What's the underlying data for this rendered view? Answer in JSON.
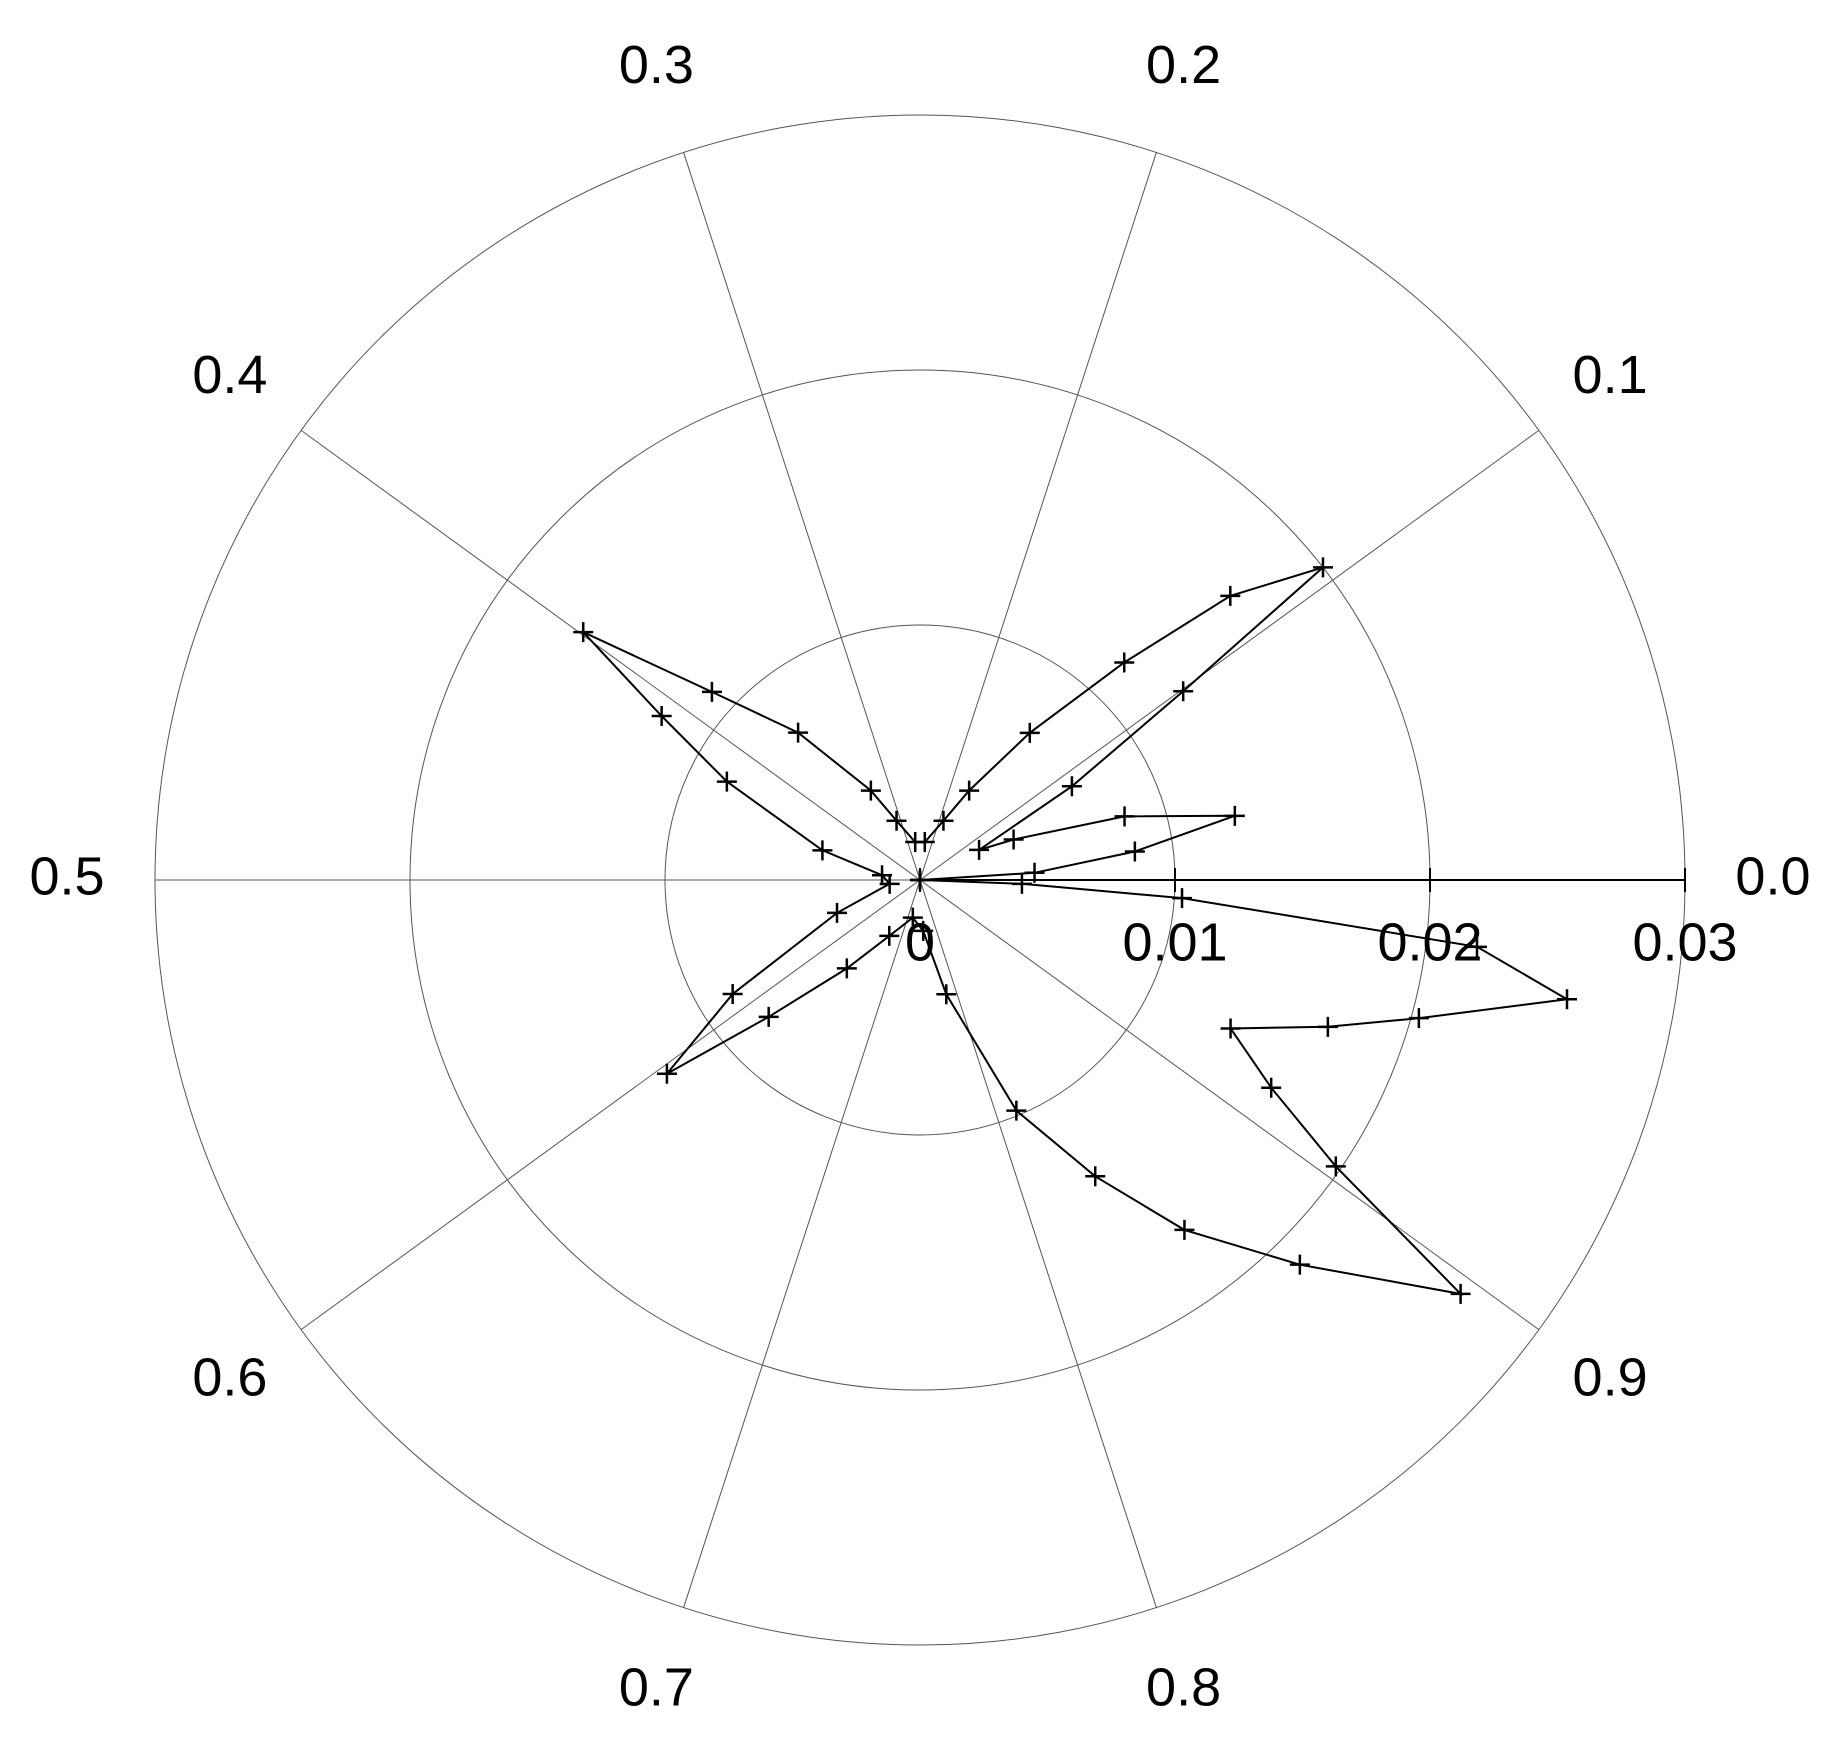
{
  "chart_data": {
    "type": "polar",
    "theta_unit": "fraction of turn",
    "rlim": [
      0,
      0.03
    ],
    "rticks": [
      0,
      0.01,
      0.02,
      0.03
    ],
    "thetaticks": [
      {
        "value": 0,
        "label": "0.0"
      },
      0.1,
      0.2,
      0.3,
      0.4,
      0.5,
      0.6,
      0.7,
      0.8,
      0.9
    ],
    "grid": true,
    "series": [
      {
        "color": "#000000",
        "marker": "+",
        "theta": [
          0.0,
          0.01,
          0.021,
          0.032,
          0.048,
          0.065,
          0.075,
          0.088,
          0.099,
          0.105,
          0.118,
          0.13,
          0.148,
          0.17,
          0.19,
          0.23,
          0.27,
          0.31,
          0.33,
          0.36,
          0.383,
          0.399,
          0.41,
          0.425,
          0.453,
          0.48,
          0.52,
          0.56,
          0.587,
          0.604,
          0.617,
          0.64,
          0.67,
          0.72,
          0.76,
          0.786,
          0.813,
          0.835,
          0.853,
          0.874,
          0.896,
          0.904,
          0.915,
          0.929,
          0.945,
          0.957,
          0.971,
          0.981,
          0.989,
          0.994,
          1.0
        ],
        "r": [
          0.0,
          0.0045,
          0.0085,
          0.0126,
          0.0084,
          0.004,
          0.0026,
          0.007,
          0.0127,
          0.02,
          0.0165,
          0.0117,
          0.0072,
          0.004,
          0.0025,
          0.0015,
          0.0015,
          0.0025,
          0.004,
          0.0075,
          0.011,
          0.0164,
          0.012,
          0.0085,
          0.004,
          0.0015,
          0.0012,
          0.0035,
          0.0086,
          0.0125,
          0.008,
          0.0045,
          0.0025,
          0.0015,
          0.002,
          0.0046,
          0.0098,
          0.0135,
          0.0172,
          0.0212,
          0.0267,
          0.0198,
          0.016,
          0.0135,
          0.017,
          0.0203,
          0.0258,
          0.022,
          0.0103,
          0.004,
          0.0
        ]
      }
    ]
  }
}
